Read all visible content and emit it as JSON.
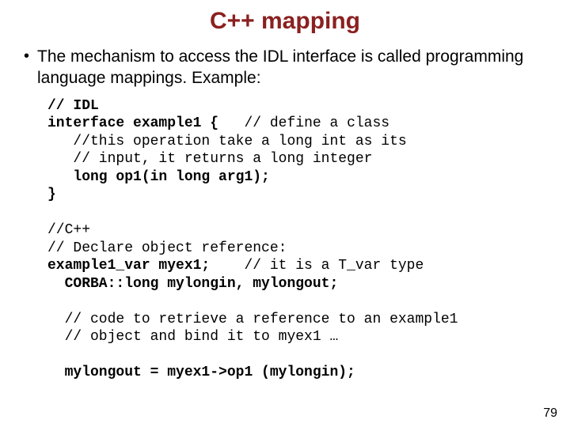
{
  "title": "C++ mapping",
  "bullet": {
    "text": "The mechanism to access the IDL interface is called programming language mappings. Example:"
  },
  "code": {
    "l1a": "// IDL",
    "l2a": "interface example1 {",
    "l2b": "   // define a class",
    "l3": "   //this operation take a long int as its",
    "l4": "   // input, it returns a long integer",
    "l5": "   long op1(in long arg1);",
    "l6": "}",
    "gap1": " ",
    "l7": "//C++",
    "l8": "// Declare object reference:",
    "l9a": "example1_var myex1;",
    "l9b": "    // it is a T_var type",
    "l10": "  CORBA::long mylongin, mylongout;",
    "gap2": " ",
    "l11": "  // code to retrieve a reference to an example1",
    "l12": "  // object and bind it to myex1 …",
    "gap3": " ",
    "l13": "  mylongout = myex1->op1 (mylongin);"
  },
  "page_number": "79",
  "colors": {
    "title": "#8b2020",
    "text": "#000000",
    "background": "#ffffff"
  },
  "fonts": {
    "title_family": "Comic Sans MS",
    "body_family": "Comic Sans MS",
    "code_family": "Courier New",
    "title_size_pt": 30,
    "body_size_pt": 21,
    "code_size_pt": 18
  }
}
